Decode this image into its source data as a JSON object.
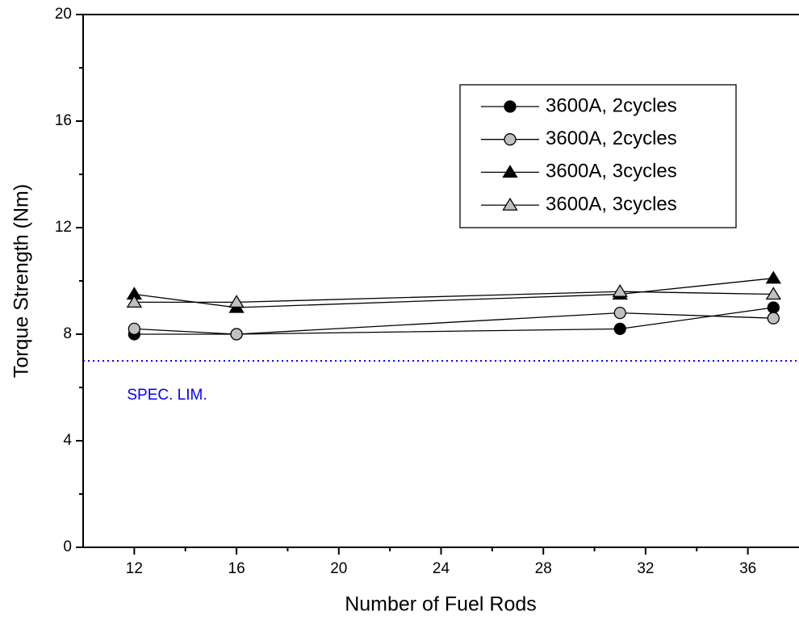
{
  "chart_data": {
    "type": "line",
    "x_label": "Number of Fuel Rods",
    "y_label": "Torque Strength (Nm)",
    "x": [
      12,
      16,
      31,
      37
    ],
    "series": [
      {
        "name": "3600A, 2cycles",
        "color": "#000000",
        "marker": "circle",
        "values": [
          8.0,
          8.0,
          8.2,
          9.0
        ]
      },
      {
        "name": "3600A, 2cycles",
        "color": "#c0c0c0",
        "marker": "circle",
        "values": [
          8.2,
          8.0,
          8.8,
          8.6
        ]
      },
      {
        "name": "3600A, 3cycles",
        "color": "#000000",
        "marker": "triangle",
        "values": [
          9.5,
          9.0,
          9.5,
          10.1
        ]
      },
      {
        "name": "3600A, 3cycles",
        "color": "#c0c0c0",
        "marker": "triangle",
        "values": [
          9.2,
          9.2,
          9.6,
          9.5
        ]
      }
    ],
    "xlim": [
      10,
      38
    ],
    "xticks": [
      12,
      16,
      20,
      24,
      28,
      32,
      36
    ],
    "ylim": [
      0,
      20
    ],
    "yticks": [
      0,
      4,
      8,
      12,
      16,
      20
    ],
    "hlines": [
      {
        "value": 7,
        "label": "SPEC. LIM.",
        "color": "#0000ff"
      }
    ],
    "legend": "upper right"
  }
}
